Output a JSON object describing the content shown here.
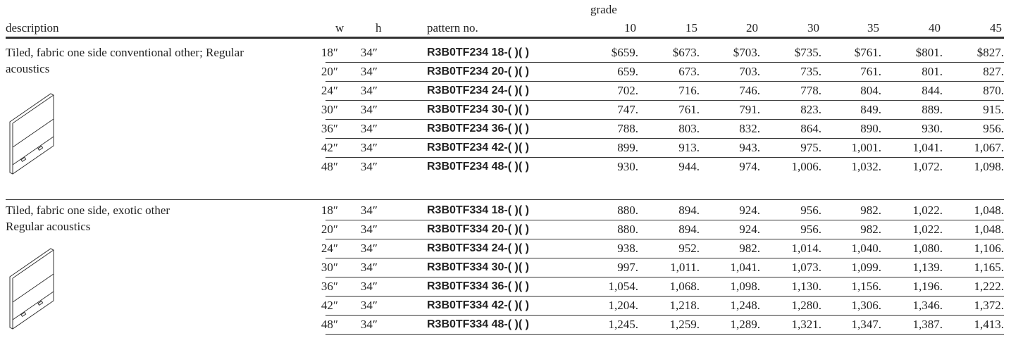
{
  "header": {
    "grade_label": "grade",
    "columns": [
      "description",
      "w",
      "h",
      "pattern no."
    ],
    "grades": [
      10,
      15,
      20,
      30,
      35,
      40,
      45
    ]
  },
  "sections": [
    {
      "description": [
        "Tiled, fabric one side conventional other; Regular",
        "acoustics"
      ],
      "rows": [
        {
          "w": "18″",
          "h": "34″",
          "pattern": "R3B0TF234 18-( )( )",
          "prices": [
            "$659.",
            "$673.",
            "$703.",
            "$735.",
            "$761.",
            "$801.",
            "$827."
          ]
        },
        {
          "w": "20″",
          "h": "34″",
          "pattern": "R3B0TF234 20-( )( )",
          "prices": [
            "659.",
            "673.",
            "703.",
            "735.",
            "761.",
            "801.",
            "827."
          ]
        },
        {
          "w": "24″",
          "h": "34″",
          "pattern": "R3B0TF234 24-( )( )",
          "prices": [
            "702.",
            "716.",
            "746.",
            "778.",
            "804.",
            "844.",
            "870."
          ]
        },
        {
          "w": "30″",
          "h": "34″",
          "pattern": "R3B0TF234 30-( )( )",
          "prices": [
            "747.",
            "761.",
            "791.",
            "823.",
            "849.",
            "889.",
            "915."
          ]
        },
        {
          "w": "36″",
          "h": "34″",
          "pattern": "R3B0TF234 36-( )( )",
          "prices": [
            "788.",
            "803.",
            "832.",
            "864.",
            "890.",
            "930.",
            "956."
          ]
        },
        {
          "w": "42″",
          "h": "34″",
          "pattern": "R3B0TF234 42-( )( )",
          "prices": [
            "899.",
            "913.",
            "943.",
            "975.",
            "1,001.",
            "1,041.",
            "1,067."
          ]
        },
        {
          "w": "48″",
          "h": "34″",
          "pattern": "R3B0TF234 48-( )( )",
          "prices": [
            "930.",
            "944.",
            "974.",
            "1,006.",
            "1,032.",
            "1,072.",
            "1,098."
          ]
        }
      ]
    },
    {
      "description": [
        "Tiled, fabric one side, exotic other",
        "Regular acoustics"
      ],
      "rows": [
        {
          "w": "18″",
          "h": "34″",
          "pattern": "R3B0TF334 18-( )( )",
          "prices": [
            "880.",
            "894.",
            "924.",
            "956.",
            "982.",
            "1,022.",
            "1,048."
          ]
        },
        {
          "w": "20″",
          "h": "34″",
          "pattern": "R3B0TF334 20-( )( )",
          "prices": [
            "880.",
            "894.",
            "924.",
            "956.",
            "982.",
            "1,022.",
            "1,048."
          ]
        },
        {
          "w": "24″",
          "h": "34″",
          "pattern": "R3B0TF334 24-( )( )",
          "prices": [
            "938.",
            "952.",
            "982.",
            "1,014.",
            "1,040.",
            "1,080.",
            "1,106."
          ]
        },
        {
          "w": "30″",
          "h": "34″",
          "pattern": "R3B0TF334 30-( )( )",
          "prices": [
            "997.",
            "1,011.",
            "1,041.",
            "1,073.",
            "1,099.",
            "1,139.",
            "1,165."
          ]
        },
        {
          "w": "36″",
          "h": "34″",
          "pattern": "R3B0TF334 36-( )( )",
          "prices": [
            "1,054.",
            "1,068.",
            "1,098.",
            "1,130.",
            "1,156.",
            "1,196.",
            "1,222."
          ]
        },
        {
          "w": "42″",
          "h": "34″",
          "pattern": "R3B0TF334 42-( )( )",
          "prices": [
            "1,204.",
            "1,218.",
            "1,248.",
            "1,280.",
            "1,306.",
            "1,346.",
            "1,372."
          ]
        },
        {
          "w": "48″",
          "h": "34″",
          "pattern": "R3B0TF334 48-( )( )",
          "prices": [
            "1,245.",
            "1,259.",
            "1,289.",
            "1,321.",
            "1,347.",
            "1,387.",
            "1,413."
          ]
        }
      ]
    }
  ]
}
